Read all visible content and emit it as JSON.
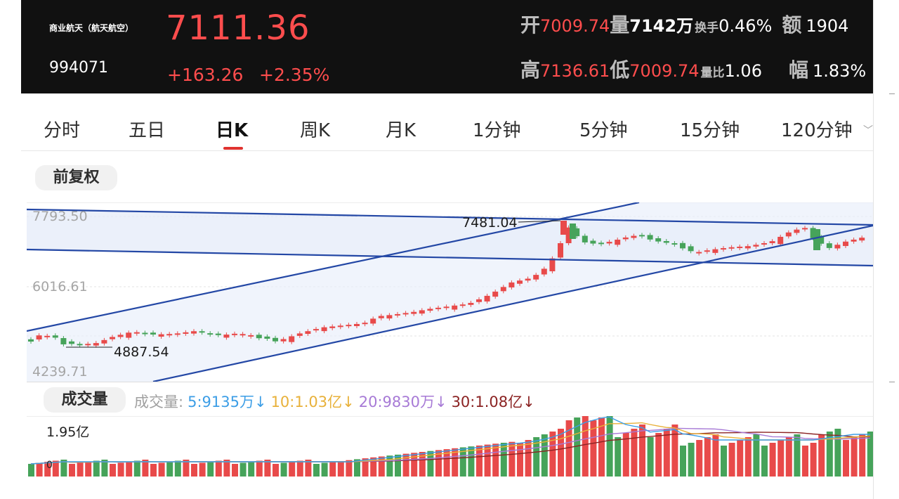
{
  "header": {
    "name": "商业航天（航天航空）",
    "code": "994071",
    "price": "7111.36",
    "change": "+163.26",
    "change_pct": "+2.35%",
    "open_label": "开",
    "open": "7009.74",
    "vol_label": "量",
    "vol": "7142万",
    "turnover_label": "换手",
    "turnover": "0.46%",
    "amount_label": "额",
    "amount": "1904",
    "high_label": "高",
    "high": "7136.61",
    "low_label": "低",
    "low": "7009.74",
    "volratio_label": "量比",
    "volratio": "1.06",
    "amp_label": "幅",
    "amp": "1.83%"
  },
  "tabs": [
    "分时",
    "五日",
    "日K",
    "周K",
    "月K",
    "1分钟",
    "5分钟",
    "15分钟",
    "120分钟"
  ],
  "active_tab": "日K",
  "adjust_button": "前复权",
  "kline": {
    "y_labels": [
      "7793.50",
      "6016.61",
      "4239.71"
    ],
    "max_annotation": "7481.04",
    "min_annotation": "4887.54"
  },
  "volume": {
    "button": "成交量",
    "legend_title": "成交量:",
    "ma5": "5:9135万↓",
    "ma10": "10:1.03亿↓",
    "ma20": "20:9830万↓",
    "ma30": "30:1.08亿↓",
    "max_label": "1.95亿",
    "zero_label": "0"
  },
  "colors": {
    "up": "#e84a4a",
    "down": "#46a35a",
    "trend": "#2347a5",
    "ma5": "#3d9ee6",
    "ma10": "#e8b13a",
    "ma20": "#a77ad6",
    "ma30": "#8b2323",
    "accent": "#e0332f"
  }
}
